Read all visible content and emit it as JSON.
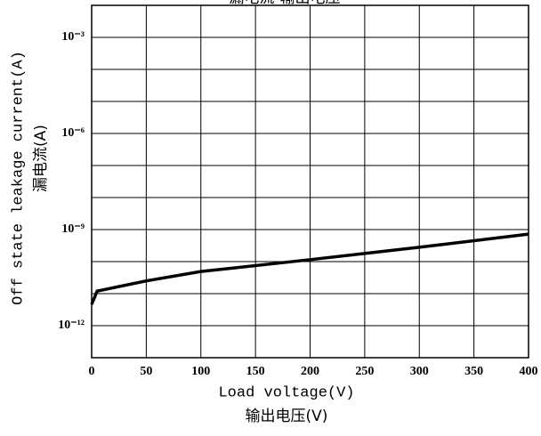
{
  "chart_data": {
    "type": "line",
    "title": "漏电流-输出电压",
    "x_label": "Load voltage(V)",
    "x_label_2": "输出电压(V)",
    "y_label": "Off state leakage current(A)",
    "y_label_2": "漏电流(A)",
    "log_y": true,
    "grid": true,
    "xlim": [
      0,
      400
    ],
    "xticks": [
      0,
      50,
      100,
      150,
      200,
      250,
      300,
      350,
      400
    ],
    "ylim": [
      1e-13,
      0.01
    ],
    "yticks": [
      {
        "value": 0.001,
        "label": "10⁻³"
      },
      {
        "value": 1e-06,
        "label": "10⁻⁶"
      },
      {
        "value": 1e-09,
        "label": "10⁻⁹"
      },
      {
        "value": 1e-12,
        "label": "10⁻¹²"
      }
    ],
    "yminor": [
      0.0001,
      1e-05,
      1e-07,
      1e-08,
      1e-10,
      1e-11
    ],
    "series": [
      {
        "color": "#000000",
        "x": [
          0,
          5,
          50,
          100,
          200,
          300,
          400
        ],
        "values": [
          4.6e-12,
          1.2e-11,
          2.5e-11,
          4.9e-11,
          1.15e-10,
          2.8e-10,
          7.2e-10
        ]
      }
    ]
  }
}
